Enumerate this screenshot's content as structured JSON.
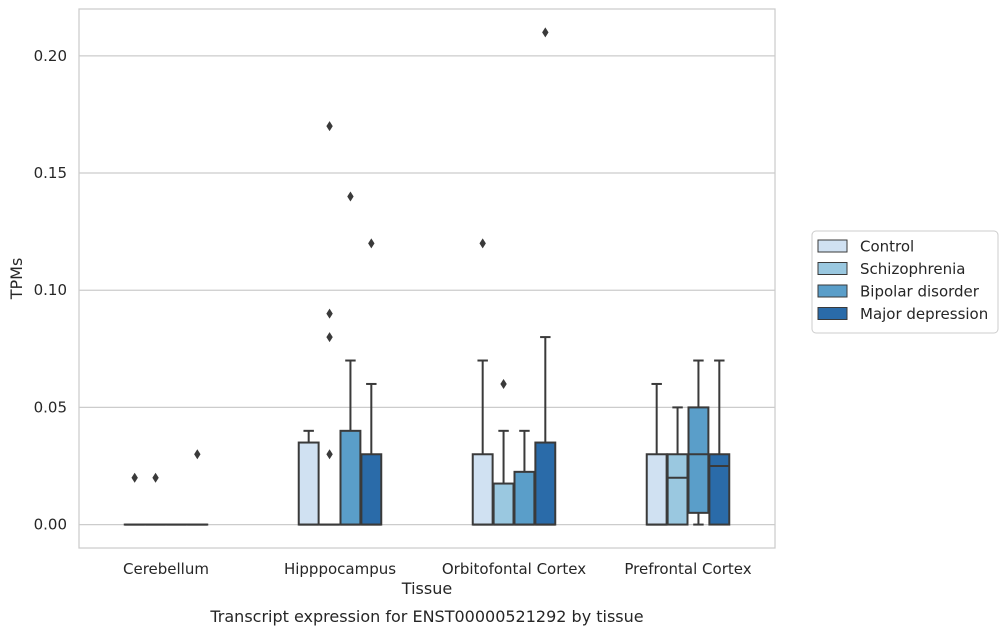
{
  "chart_data": {
    "type": "box",
    "title": "",
    "caption": "Transcript expression for ENST00000521292 by tissue",
    "xlabel": "Tissue",
    "ylabel": "TPMs",
    "ylim": [
      -0.01,
      0.22
    ],
    "yticks": [
      0.0,
      0.05,
      0.1,
      0.15,
      0.2
    ],
    "ytick_labels": [
      "0.00",
      "0.05",
      "0.10",
      "0.15",
      "0.20"
    ],
    "grid": "horizontal",
    "legend_position": "right",
    "categories": [
      "Cerebellum",
      "Hipppocampus",
      "Orbitofontal Cortex",
      "Prefrontal Cortex"
    ],
    "series": [
      {
        "name": "Control",
        "color": "#d0e1f2",
        "boxes": [
          {
            "q1": 0.0,
            "median": 0.0,
            "q3": 0.0,
            "whisker_low": 0.0,
            "whisker_high": 0.0,
            "outliers": [
              0.02
            ]
          },
          {
            "q1": 0.0,
            "median": 0.0,
            "q3": 0.035,
            "whisker_low": 0.0,
            "whisker_high": 0.04,
            "outliers": []
          },
          {
            "q1": 0.0,
            "median": 0.0,
            "q3": 0.03,
            "whisker_low": 0.0,
            "whisker_high": 0.07,
            "outliers": [
              0.12
            ]
          },
          {
            "q1": 0.0,
            "median": 0.0,
            "q3": 0.03,
            "whisker_low": 0.0,
            "whisker_high": 0.06,
            "outliers": []
          }
        ]
      },
      {
        "name": "Schizophrenia",
        "color": "#9ac8e0",
        "boxes": [
          {
            "q1": 0.0,
            "median": 0.0,
            "q3": 0.0,
            "whisker_low": 0.0,
            "whisker_high": 0.0,
            "outliers": [
              0.02
            ]
          },
          {
            "q1": 0.0,
            "median": 0.0,
            "q3": 0.0,
            "whisker_low": 0.0,
            "whisker_high": 0.0,
            "outliers": [
              0.03,
              0.08,
              0.09,
              0.17
            ]
          },
          {
            "q1": 0.0,
            "median": 0.0,
            "q3": 0.0175,
            "whisker_low": 0.0,
            "whisker_high": 0.04,
            "outliers": [
              0.06
            ]
          },
          {
            "q1": 0.0,
            "median": 0.02,
            "q3": 0.03,
            "whisker_low": 0.0,
            "whisker_high": 0.05,
            "outliers": []
          }
        ]
      },
      {
        "name": "Bipolar disorder",
        "color": "#5a9ec9",
        "boxes": [
          {
            "q1": 0.0,
            "median": 0.0,
            "q3": 0.0,
            "whisker_low": 0.0,
            "whisker_high": 0.0,
            "outliers": []
          },
          {
            "q1": 0.0,
            "median": 0.0,
            "q3": 0.04,
            "whisker_low": 0.0,
            "whisker_high": 0.07,
            "outliers": [
              0.14
            ]
          },
          {
            "q1": 0.0,
            "median": 0.0,
            "q3": 0.0225,
            "whisker_low": 0.0,
            "whisker_high": 0.04,
            "outliers": []
          },
          {
            "q1": 0.005,
            "median": 0.03,
            "q3": 0.05,
            "whisker_low": 0.0,
            "whisker_high": 0.07,
            "outliers": []
          }
        ]
      },
      {
        "name": "Major depression",
        "color": "#2a6ba9",
        "boxes": [
          {
            "q1": 0.0,
            "median": 0.0,
            "q3": 0.0,
            "whisker_low": 0.0,
            "whisker_high": 0.0,
            "outliers": [
              0.03
            ]
          },
          {
            "q1": 0.0,
            "median": 0.0,
            "q3": 0.03,
            "whisker_low": 0.0,
            "whisker_high": 0.06,
            "outliers": [
              0.12
            ]
          },
          {
            "q1": 0.0,
            "median": 0.0,
            "q3": 0.035,
            "whisker_low": 0.0,
            "whisker_high": 0.08,
            "outliers": [
              0.21
            ]
          },
          {
            "q1": 0.0,
            "median": 0.025,
            "q3": 0.03,
            "whisker_low": 0.0,
            "whisker_high": 0.07,
            "outliers": []
          }
        ]
      }
    ]
  }
}
